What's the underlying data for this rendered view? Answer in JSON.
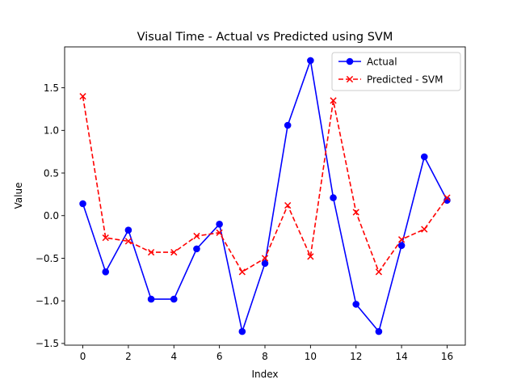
{
  "chart_data": {
    "type": "line",
    "title": "Visual Time - Actual vs Predicted using SVM",
    "xlabel": "Index",
    "ylabel": "Value",
    "xlim": [
      -0.8,
      16.8
    ],
    "ylim": [
      -1.52,
      1.98
    ],
    "xticks": [
      0,
      2,
      4,
      6,
      8,
      10,
      12,
      14,
      16
    ],
    "xtick_labels": [
      "0",
      "2",
      "4",
      "6",
      "8",
      "10",
      "12",
      "14",
      "16"
    ],
    "yticks": [
      -1.5,
      -1.0,
      -0.5,
      0.0,
      0.5,
      1.0,
      1.5
    ],
    "ytick_labels": [
      "−1.5",
      "−1.0",
      "−0.5",
      "0.0",
      "0.5",
      "1.0",
      "1.5"
    ],
    "grid": false,
    "legend_position": "top-right",
    "x": [
      0,
      1,
      2,
      3,
      4,
      5,
      6,
      7,
      8,
      9,
      10,
      11,
      12,
      13,
      14,
      15,
      16
    ],
    "series": [
      {
        "name": "Actual",
        "color": "#0000ff",
        "line_style": "solid",
        "marker": "circle",
        "values": [
          0.14,
          -0.66,
          -0.17,
          -0.98,
          -0.98,
          -0.39,
          -0.1,
          -1.36,
          -0.56,
          1.06,
          1.82,
          0.21,
          -1.04,
          -1.36,
          -0.35,
          0.69,
          0.18
        ]
      },
      {
        "name": "Predicted - SVM",
        "color": "#ff0000",
        "line_style": "dashed",
        "marker": "x",
        "values": [
          1.4,
          -0.26,
          -0.3,
          -0.43,
          -0.43,
          -0.24,
          -0.2,
          -0.66,
          -0.5,
          0.12,
          -0.48,
          1.35,
          0.04,
          -0.66,
          -0.28,
          -0.16,
          0.21
        ]
      }
    ]
  }
}
